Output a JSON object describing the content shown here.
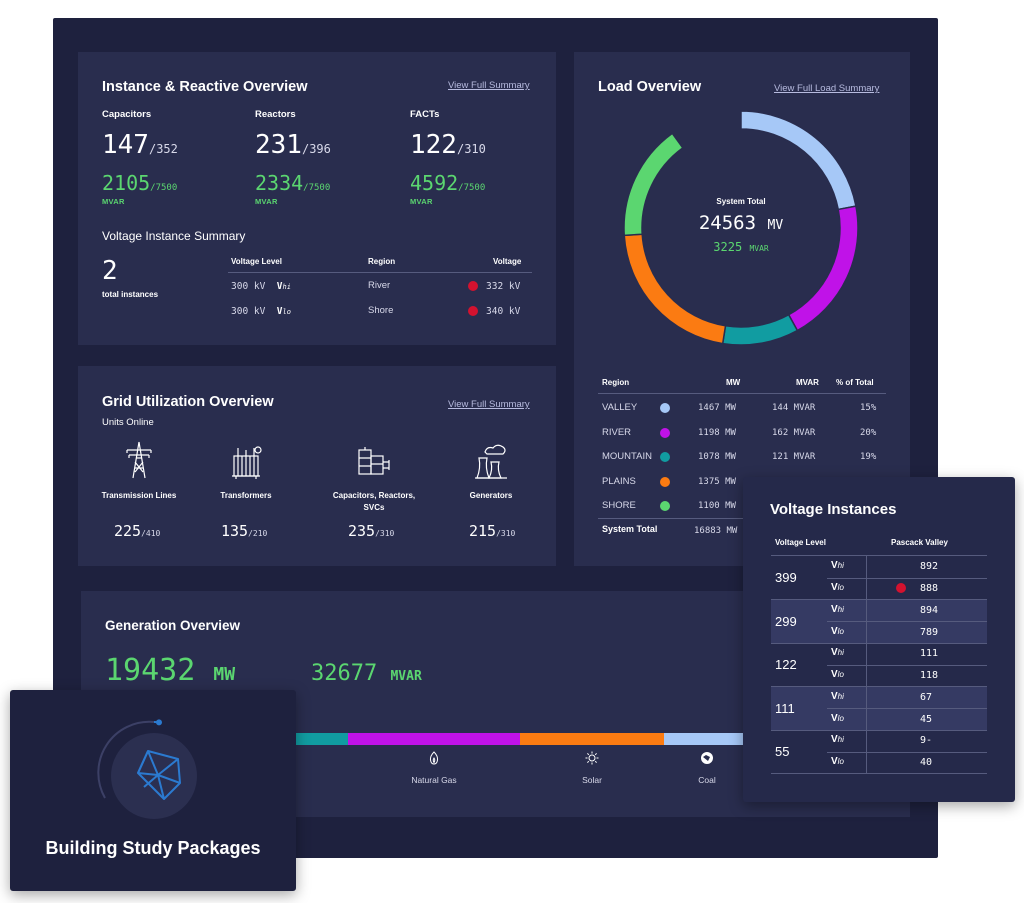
{
  "instance": {
    "title": "Instance & Reactive Overview",
    "link": "View Full Summary",
    "groups": [
      {
        "label": "Capacitors",
        "count": "147",
        "total": "/352",
        "mvar": "2105",
        "mvar_total": "/7500",
        "unit": "MVAR"
      },
      {
        "label": "Reactors",
        "count": "231",
        "total": "/396",
        "mvar": "2334",
        "mvar_total": "/7500",
        "unit": "MVAR"
      },
      {
        "label": "FACTs",
        "count": "122",
        "total": "/310",
        "mvar": "4592",
        "mvar_total": "/7500",
        "unit": "MVAR"
      }
    ],
    "voltage_summary_title": "Voltage Instance Summary",
    "total_count": "2",
    "total_label": "total instances",
    "table_headers": [
      "Voltage Level",
      "Region",
      "Voltage"
    ],
    "rows": [
      {
        "level": "300 kV",
        "v": "V",
        "sub": "hi",
        "region": "River",
        "voltage": "332 kV"
      },
      {
        "level": "300 kV",
        "v": "V",
        "sub": "lo",
        "region": "Shore",
        "voltage": "340 kV"
      }
    ]
  },
  "grid": {
    "title": "Grid Utilization Overview",
    "subtitle": "Units Online",
    "link": "View Full Summary",
    "units": [
      {
        "label": "Transmission Lines",
        "value": "225",
        "total": "/410",
        "icon": "transmission-tower-icon"
      },
      {
        "label": "Transformers",
        "value": "135",
        "total": "/210",
        "icon": "transformer-icon"
      },
      {
        "label": "Capacitors, Reactors, SVCs",
        "value": "235",
        "total": "/310",
        "icon": "capacitor-bank-icon"
      },
      {
        "label": "Generators",
        "value": "215",
        "total": "/310",
        "icon": "power-plant-icon"
      }
    ]
  },
  "load": {
    "title": "Load Overview",
    "link": "View Full Load Summary",
    "center_label": "System Total",
    "center_value": "24563",
    "center_unit": "MV",
    "center_mvar": "3225",
    "center_mvar_unit": "MVAR",
    "table_headers": [
      "Region",
      "MW",
      "MVAR",
      "% of Total"
    ],
    "rows": [
      {
        "region": "VALLEY",
        "mw": "1467 MW",
        "mvar": "144 MVAR",
        "pct": "15%",
        "color": "#a6c8f7"
      },
      {
        "region": "RIVER",
        "mw": "1198 MW",
        "mvar": "162 MVAR",
        "pct": "20%",
        "color": "#c012e8"
      },
      {
        "region": "MOUNTAIN",
        "mw": "1078 MW",
        "mvar": "121 MVAR",
        "pct": "19%",
        "color": "#119ca1"
      },
      {
        "region": "PLAINS",
        "mw": "1375 MW",
        "mvar": "",
        "pct": "",
        "color": "#fb7b12"
      },
      {
        "region": "SHORE",
        "mw": "1100 MW",
        "mvar": "",
        "pct": "",
        "color": "#5bd670"
      }
    ],
    "total_label": "System Total",
    "total_mw": "16883 MW",
    "donut_segments": [
      {
        "color": "#a6c8f7",
        "fraction": 0.22
      },
      {
        "color": "#c012e8",
        "fraction": 0.2
      },
      {
        "color": "#119ca1",
        "fraction": 0.105
      },
      {
        "color": "#fb7b12",
        "fraction": 0.215
      },
      {
        "color": "#5bd670",
        "fraction": 0.16
      }
    ]
  },
  "generation": {
    "title": "Generation Overview",
    "mw_value": "19432",
    "mw_unit": "MW",
    "mvar_value": "32677",
    "mvar_unit": "MVAR",
    "legend": [
      {
        "label": "Natural Gas",
        "icon": "flame-icon"
      },
      {
        "label": "Solar",
        "icon": "sun-icon"
      },
      {
        "label": "Coal",
        "icon": "coal-icon"
      }
    ]
  },
  "voltage_instances": {
    "title": "Voltage Instances",
    "headers": [
      "Voltage Level",
      "Pascack Valley"
    ],
    "groups": [
      {
        "level": "399",
        "hi": "892",
        "lo": "888",
        "lo_alert": true
      },
      {
        "level": "299",
        "hi": "894",
        "lo": "789",
        "lo_alert": false
      },
      {
        "level": "122",
        "hi": "111",
        "lo": "118",
        "lo_alert": false
      },
      {
        "level": "111",
        "hi": "67",
        "lo": "45",
        "lo_alert": false
      },
      {
        "level": "55",
        "hi": "9-",
        "lo": "40",
        "lo_alert": false
      }
    ],
    "v": "V",
    "sub_hi": "hi",
    "sub_lo": "lo"
  },
  "building": {
    "title": "Building Study Packages",
    "icon": "polyhedron-icon"
  },
  "colors": {
    "alert": "#d3122f",
    "accent_green": "#5bd670",
    "progress": "#2b7ad0"
  }
}
